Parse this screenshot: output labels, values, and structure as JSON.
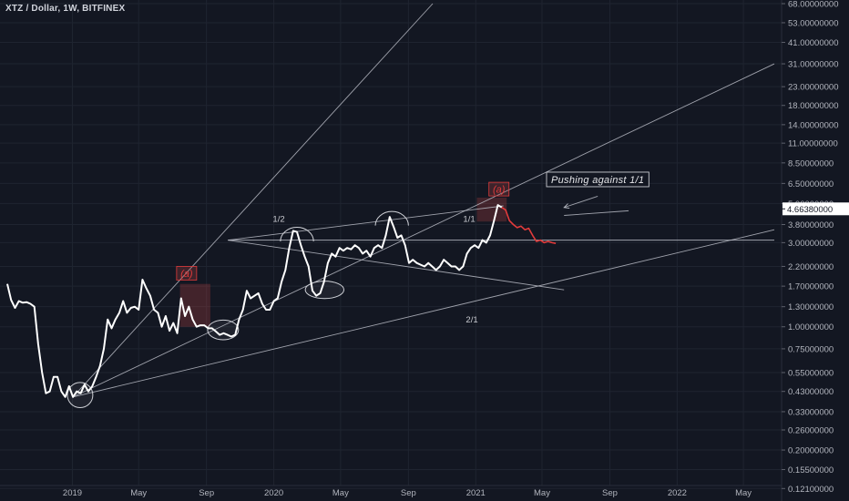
{
  "header": {
    "title": "XTZ / Dollar, 1W, BITFINEX"
  },
  "colors": {
    "background": "#131722",
    "price": "#ffffff",
    "projection": "#e23b3b",
    "lines": "#b8bbc4",
    "grid": "#1f2430"
  },
  "chart_data": {
    "type": "line",
    "scale": "log",
    "ylim": [
      0.12,
      68
    ],
    "xlim": [
      "2018-09-05",
      "2022-06-26"
    ],
    "y_ticks": [
      {
        "v": 68,
        "label": "68.00000000"
      },
      {
        "v": 53,
        "label": "53.00000000"
      },
      {
        "v": 41,
        "label": "41.00000000"
      },
      {
        "v": 31,
        "label": "31.00000000"
      },
      {
        "v": 23,
        "label": "23.00000000"
      },
      {
        "v": 18,
        "label": "18.00000000"
      },
      {
        "v": 14,
        "label": "14.00000000"
      },
      {
        "v": 11,
        "label": "11.00000000"
      },
      {
        "v": 8.5,
        "label": "8.50000000"
      },
      {
        "v": 6.5,
        "label": "6.50000000"
      },
      {
        "v": 5,
        "label": "5.00000000"
      },
      {
        "v": 3.8,
        "label": "3.80000000"
      },
      {
        "v": 3,
        "label": "3.00000000"
      },
      {
        "v": 2.2,
        "label": "2.20000000"
      },
      {
        "v": 1.7,
        "label": "1.70000000"
      },
      {
        "v": 1.3,
        "label": "1.30000000"
      },
      {
        "v": 1,
        "label": "1.00000000"
      },
      {
        "v": 0.75,
        "label": "0.75000000"
      },
      {
        "v": 0.55,
        "label": "0.55000000"
      },
      {
        "v": 0.43,
        "label": "0.43000000"
      },
      {
        "v": 0.33,
        "label": "0.33000000"
      },
      {
        "v": 0.26,
        "label": "0.26000000"
      },
      {
        "v": 0.2,
        "label": "0.20000000"
      },
      {
        "v": 0.155,
        "label": "0.15500000"
      },
      {
        "v": 0.121,
        "label": "0.12100000"
      }
    ],
    "x_ticks": [
      {
        "t": "2019-01-01",
        "label": "2019"
      },
      {
        "t": "2019-05-01",
        "label": "May"
      },
      {
        "t": "2019-09-01",
        "label": "Sep"
      },
      {
        "t": "2020-01-01",
        "label": "2020"
      },
      {
        "t": "2020-05-01",
        "label": "May"
      },
      {
        "t": "2020-09-01",
        "label": "Sep"
      },
      {
        "t": "2021-01-01",
        "label": "2021"
      },
      {
        "t": "2021-05-01",
        "label": "May"
      },
      {
        "t": "2021-09-01",
        "label": "Sep"
      },
      {
        "t": "2022-01-01",
        "label": "2022"
      },
      {
        "t": "2022-05-01",
        "label": "May"
      }
    ],
    "current_price": {
      "v": 4.6638,
      "label": "4.66380000"
    },
    "series": [
      {
        "values": [
          [
            "2018-09-05",
            1.75
          ],
          [
            "2018-09-12",
            1.42
          ],
          [
            "2018-09-19",
            1.28
          ],
          [
            "2018-09-26",
            1.4
          ],
          [
            "2018-10-03",
            1.37
          ],
          [
            "2018-10-10",
            1.38
          ],
          [
            "2018-10-17",
            1.35
          ],
          [
            "2018-10-24",
            1.3
          ],
          [
            "2018-10-31",
            0.8
          ],
          [
            "2018-11-07",
            0.55
          ],
          [
            "2018-11-14",
            0.42
          ],
          [
            "2018-11-21",
            0.43
          ],
          [
            "2018-11-28",
            0.52
          ],
          [
            "2018-12-05",
            0.52
          ],
          [
            "2018-12-12",
            0.43
          ],
          [
            "2018-12-19",
            0.4
          ],
          [
            "2018-12-26",
            0.46
          ],
          [
            "2019-01-02",
            0.4
          ],
          [
            "2019-01-09",
            0.43
          ],
          [
            "2019-01-16",
            0.42
          ],
          [
            "2019-01-23",
            0.47
          ],
          [
            "2019-01-30",
            0.43
          ],
          [
            "2019-02-06",
            0.46
          ],
          [
            "2019-02-13",
            0.52
          ],
          [
            "2019-02-20",
            0.6
          ],
          [
            "2019-02-27",
            0.75
          ],
          [
            "2019-03-06",
            1.1
          ],
          [
            "2019-03-13",
            0.98
          ],
          [
            "2019-03-20",
            1.1
          ],
          [
            "2019-03-27",
            1.2
          ],
          [
            "2019-04-03",
            1.4
          ],
          [
            "2019-04-10",
            1.2
          ],
          [
            "2019-04-17",
            1.28
          ],
          [
            "2019-04-24",
            1.3
          ],
          [
            "2019-05-01",
            1.25
          ],
          [
            "2019-05-08",
            1.85
          ],
          [
            "2019-05-15",
            1.65
          ],
          [
            "2019-05-22",
            1.5
          ],
          [
            "2019-05-29",
            1.25
          ],
          [
            "2019-06-05",
            1.2
          ],
          [
            "2019-06-12",
            1.0
          ],
          [
            "2019-06-19",
            1.15
          ],
          [
            "2019-06-26",
            0.95
          ],
          [
            "2019-07-03",
            1.05
          ],
          [
            "2019-07-10",
            0.92
          ],
          [
            "2019-07-17",
            1.45
          ],
          [
            "2019-07-24",
            1.15
          ],
          [
            "2019-07-31",
            1.3
          ],
          [
            "2019-08-07",
            1.1
          ],
          [
            "2019-08-14",
            1.0
          ],
          [
            "2019-08-21",
            1.02
          ],
          [
            "2019-08-28",
            1.02
          ],
          [
            "2019-09-04",
            0.98
          ],
          [
            "2019-09-11",
            0.98
          ],
          [
            "2019-09-18",
            0.94
          ],
          [
            "2019-09-25",
            0.9
          ],
          [
            "2019-10-02",
            0.92
          ],
          [
            "2019-10-09",
            0.9
          ],
          [
            "2019-10-16",
            0.88
          ],
          [
            "2019-10-23",
            0.9
          ],
          [
            "2019-10-30",
            1.1
          ],
          [
            "2019-11-06",
            1.25
          ],
          [
            "2019-11-13",
            1.6
          ],
          [
            "2019-11-20",
            1.45
          ],
          [
            "2019-11-27",
            1.5
          ],
          [
            "2019-12-04",
            1.55
          ],
          [
            "2019-12-11",
            1.35
          ],
          [
            "2019-12-18",
            1.25
          ],
          [
            "2019-12-25",
            1.25
          ],
          [
            "2020-01-01",
            1.4
          ],
          [
            "2020-01-08",
            1.45
          ],
          [
            "2020-01-15",
            1.8
          ],
          [
            "2020-01-22",
            2.1
          ],
          [
            "2020-01-29",
            2.8
          ],
          [
            "2020-02-05",
            3.5
          ],
          [
            "2020-02-12",
            3.45
          ],
          [
            "2020-02-19",
            2.9
          ],
          [
            "2020-02-26",
            2.5
          ],
          [
            "2020-03-04",
            2.2
          ],
          [
            "2020-03-11",
            1.6
          ],
          [
            "2020-03-18",
            1.5
          ],
          [
            "2020-03-25",
            1.55
          ],
          [
            "2020-04-01",
            1.8
          ],
          [
            "2020-04-08",
            2.3
          ],
          [
            "2020-04-15",
            2.6
          ],
          [
            "2020-04-22",
            2.5
          ],
          [
            "2020-04-29",
            2.8
          ],
          [
            "2020-05-06",
            2.7
          ],
          [
            "2020-05-13",
            2.8
          ],
          [
            "2020-05-20",
            2.75
          ],
          [
            "2020-05-27",
            2.9
          ],
          [
            "2020-06-03",
            2.8
          ],
          [
            "2020-06-10",
            2.6
          ],
          [
            "2020-06-17",
            2.7
          ],
          [
            "2020-06-24",
            2.5
          ],
          [
            "2020-07-01",
            2.8
          ],
          [
            "2020-07-08",
            2.9
          ],
          [
            "2020-07-15",
            2.8
          ],
          [
            "2020-07-22",
            3.3
          ],
          [
            "2020-07-29",
            4.2
          ],
          [
            "2020-08-05",
            3.7
          ],
          [
            "2020-08-12",
            3.2
          ],
          [
            "2020-08-19",
            3.3
          ],
          [
            "2020-08-26",
            2.9
          ],
          [
            "2020-09-02",
            2.3
          ],
          [
            "2020-09-09",
            2.4
          ],
          [
            "2020-09-16",
            2.3
          ],
          [
            "2020-09-23",
            2.25
          ],
          [
            "2020-09-30",
            2.2
          ],
          [
            "2020-10-07",
            2.3
          ],
          [
            "2020-10-14",
            2.2
          ],
          [
            "2020-10-21",
            2.1
          ],
          [
            "2020-10-28",
            2.2
          ],
          [
            "2020-11-04",
            2.4
          ],
          [
            "2020-11-11",
            2.3
          ],
          [
            "2020-11-18",
            2.2
          ],
          [
            "2020-11-25",
            2.2
          ],
          [
            "2020-12-02",
            2.1
          ],
          [
            "2020-12-09",
            2.2
          ],
          [
            "2020-12-16",
            2.6
          ],
          [
            "2020-12-23",
            2.8
          ],
          [
            "2020-12-30",
            2.9
          ],
          [
            "2021-01-06",
            2.8
          ],
          [
            "2021-01-13",
            3.1
          ],
          [
            "2021-01-20",
            3.0
          ],
          [
            "2021-01-27",
            3.3
          ],
          [
            "2021-02-03",
            4.0
          ],
          [
            "2021-02-10",
            4.9
          ],
          [
            "2021-02-17",
            4.75
          ]
        ]
      },
      {
        "values": [
          [
            "2021-02-17",
            4.75
          ],
          [
            "2021-02-24",
            4.6
          ],
          [
            "2021-03-03",
            4.0
          ],
          [
            "2021-03-10",
            3.8
          ],
          [
            "2021-03-17",
            3.65
          ],
          [
            "2021-03-24",
            3.72
          ],
          [
            "2021-03-31",
            3.55
          ],
          [
            "2021-04-07",
            3.62
          ],
          [
            "2021-04-14",
            3.3
          ],
          [
            "2021-04-21",
            3.05
          ],
          [
            "2021-04-28",
            3.1
          ],
          [
            "2021-05-05",
            3.0
          ],
          [
            "2021-05-12",
            3.05
          ],
          [
            "2021-05-19",
            3.0
          ],
          [
            "2021-05-26",
            2.97
          ]
        ]
      }
    ],
    "trendlines": [
      {
        "from": [
          "2019-01-02",
          0.4
        ],
        "to": [
          "2020-10-15",
          68
        ]
      },
      {
        "from": [
          "2019-01-02",
          0.4
        ],
        "to": [
          "2022-06-26",
          31
        ]
      },
      {
        "from": [
          "2019-01-02",
          0.4
        ],
        "to": [
          "2022-06-26",
          3.55
        ]
      },
      {
        "from": [
          "2019-10-10",
          3.1
        ],
        "to": [
          "2022-06-26",
          3.1
        ]
      },
      {
        "from": [
          "2019-10-10",
          3.1
        ],
        "to": [
          "2021-06-10",
          1.62
        ]
      },
      {
        "from": [
          "2019-10-10",
          3.1
        ],
        "to": [
          "2021-02-20",
          4.85
        ]
      },
      {
        "from": [
          "2021-08-10",
          5.5
        ],
        "to": [
          "2021-06-10",
          4.75
        ]
      },
      {
        "from": [
          "2021-10-05",
          4.55
        ],
        "to": [
          "2021-06-10",
          4.28
        ]
      }
    ],
    "ellipses": [
      {
        "center": [
          "2019-01-15",
          0.41
        ],
        "radii_days": [
          23
        ],
        "span": [
          0.36,
          0.5
        ]
      },
      {
        "center": [
          "2019-10-01",
          0.96
        ],
        "radii_days": [
          28
        ],
        "span": [
          0.85,
          1.1
        ]
      },
      {
        "center": [
          "2020-04-02",
          1.62
        ],
        "radii_days": [
          35
        ],
        "span": [
          1.45,
          1.82
        ]
      }
    ],
    "arcs": [
      {
        "center": [
          "2020-02-12",
          3.05
        ],
        "radius_days": 30
      },
      {
        "center": [
          "2020-08-02",
          3.75
        ],
        "radius_days": 30
      }
    ],
    "highlight_boxes": [
      {
        "from": [
          "2019-07-15",
          1.0
        ],
        "to": [
          "2019-09-08",
          1.75
        ]
      },
      {
        "from": [
          "2021-01-03",
          3.95
        ],
        "to": [
          "2021-02-26",
          5.4
        ]
      }
    ],
    "annotations": [
      {
        "text": "(a)",
        "at": [
          "2019-07-27",
          2.0
        ],
        "kind": "wave"
      },
      {
        "text": "(a)",
        "at": [
          "2021-02-12",
          6.0
        ],
        "kind": "wave"
      },
      {
        "text": "1/2",
        "at": [
          "2020-01-10",
          3.95
        ],
        "kind": "text"
      },
      {
        "text": "1/1",
        "at": [
          "2020-12-20",
          3.95
        ],
        "kind": "text"
      },
      {
        "text": "2/1",
        "at": [
          "2020-12-25",
          1.06
        ],
        "kind": "text"
      },
      {
        "text": "Pushing against 1/1",
        "at": [
          "2021-08-10",
          6.85
        ],
        "kind": "box"
      }
    ]
  }
}
